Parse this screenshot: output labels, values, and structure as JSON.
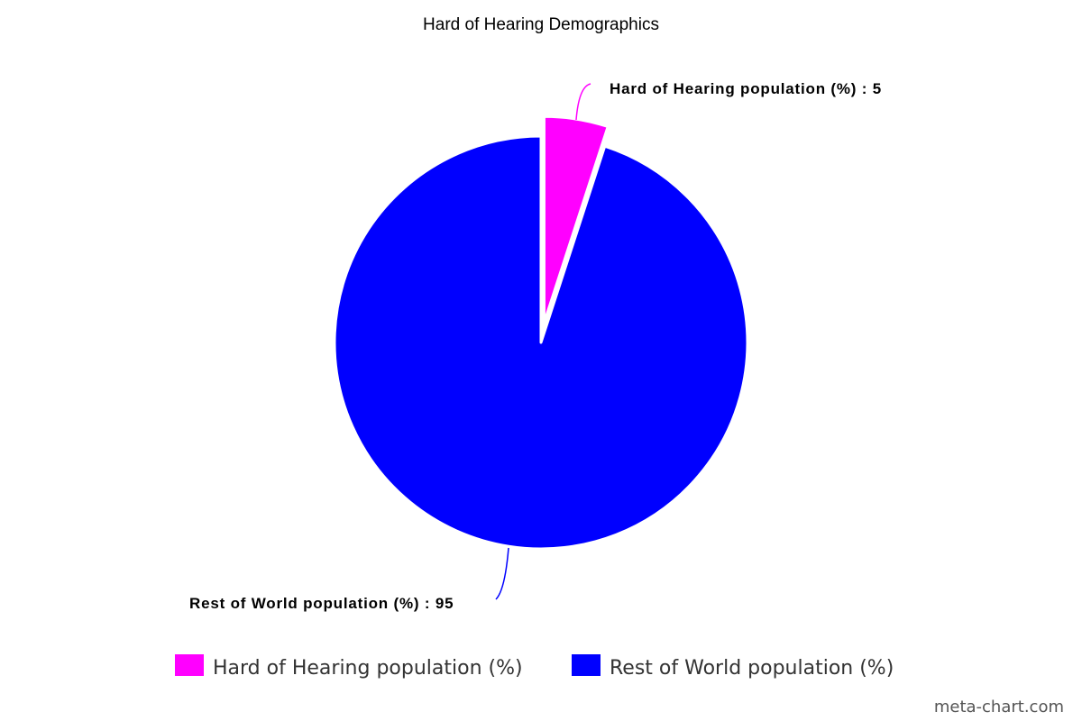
{
  "chart_data": {
    "type": "pie",
    "title": "Hard of Hearing Demographics",
    "label_separator": " : ",
    "legend_position": "bottom",
    "slices": [
      {
        "name": "Hard of Hearing population (%)",
        "value": 5,
        "color": "#ff00ff",
        "exploded": true
      },
      {
        "name": "Rest of World population (%)",
        "value": 95,
        "color": "#0000ff",
        "exploded": false
      }
    ]
  },
  "watermark": "meta-chart.com"
}
